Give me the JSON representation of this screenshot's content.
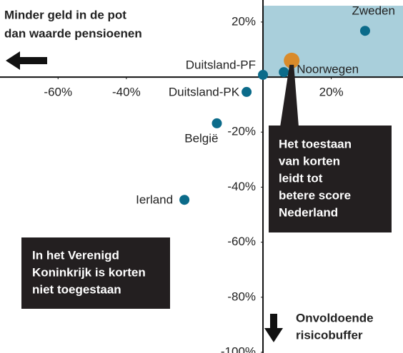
{
  "chart_data": {
    "type": "scatter",
    "series": [
      {
        "color": "#0b6b8a",
        "labels": [
          "Zweden",
          "Noorwegen",
          "Duitsland-PF",
          "Duitsland-PK",
          "België",
          "Ierland",
          null
        ],
        "x": [
          29.9,
          6.1,
          0,
          -4.8,
          -13.5,
          -23,
          8.4
        ],
        "values": [
          16.8,
          1.8,
          0.8,
          -5.4,
          -16.8,
          -44.6,
          6
        ],
        "highlight_color": "#d98b2b"
      }
    ],
    "xlim": [
      -77,
      41
    ],
    "ylim": [
      -100,
      28
    ],
    "xticks": [
      {
        "value": -60,
        "label": "-60%"
      },
      {
        "value": -40,
        "label": "-40%"
      },
      {
        "value": 20,
        "label": "20%"
      }
    ],
    "yticks": [
      {
        "value": 20,
        "label": "20%"
      },
      {
        "value": -20,
        "label": "-20%"
      },
      {
        "value": -40,
        "label": "-40%"
      },
      {
        "value": -60,
        "label": "-60%"
      },
      {
        "value": -80,
        "label": "-80%"
      },
      {
        "value": -100,
        "label": "-100%"
      }
    ],
    "quadrant_color": "#a9cfdb",
    "annotations": {
      "top_left": [
        "Minder geld in de pot",
        "dan waarde pensioenen"
      ],
      "callout": [
        "Het toestaan",
        "van korten",
        "leidt tot",
        "betere score",
        "Nederland"
      ],
      "uk": [
        "In het Verenigd",
        "Koninkrijk is korten",
        "niet toegestaan"
      ],
      "bottom": [
        "Onvoldoende",
        "risicobuffer"
      ]
    }
  }
}
